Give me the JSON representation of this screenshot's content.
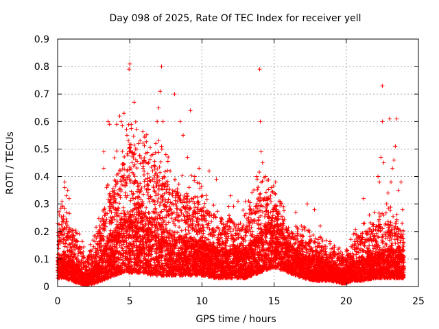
{
  "chart_data": {
    "type": "scatter",
    "title": "Day 098 of 2025, Rate Of TEC Index for receiver yell",
    "xlabel": "GPS time / hours",
    "ylabel": "ROTI / TECUs",
    "xlim": [
      0,
      25
    ],
    "ylim": [
      0,
      0.9
    ],
    "x_ticks": [
      0,
      5,
      10,
      15,
      20,
      25
    ],
    "x_tick_labels": [
      "0",
      "5",
      "10",
      "15",
      "20",
      "25"
    ],
    "y_ticks": [
      0,
      0.1,
      0.2,
      0.3,
      0.4,
      0.5,
      0.6,
      0.7,
      0.8,
      0.9
    ],
    "y_tick_labels": [
      "0",
      "0.1",
      "0.2",
      "0.3",
      "0.4",
      "0.5",
      "0.6",
      "0.7",
      "0.8",
      "0.9"
    ],
    "grid": true,
    "marker": "+",
    "marker_color": "#ff0000",
    "series": [
      {
        "name": "ROTI",
        "envelope": [
          {
            "x": 0.0,
            "base": 0.03,
            "mid": 0.08,
            "top": 0.22
          },
          {
            "x": 0.5,
            "base": 0.03,
            "mid": 0.09,
            "top": 0.25
          },
          {
            "x": 1.0,
            "base": 0.02,
            "mid": 0.07,
            "top": 0.2
          },
          {
            "x": 1.5,
            "base": 0.01,
            "mid": 0.05,
            "top": 0.16
          },
          {
            "x": 2.0,
            "base": 0.005,
            "mid": 0.03,
            "top": 0.1
          },
          {
            "x": 2.5,
            "base": 0.01,
            "mid": 0.05,
            "top": 0.15
          },
          {
            "x": 3.0,
            "base": 0.02,
            "mid": 0.08,
            "top": 0.24
          },
          {
            "x": 3.5,
            "base": 0.03,
            "mid": 0.12,
            "top": 0.33
          },
          {
            "x": 4.0,
            "base": 0.04,
            "mid": 0.15,
            "top": 0.4
          },
          {
            "x": 4.5,
            "base": 0.05,
            "mid": 0.18,
            "top": 0.48
          },
          {
            "x": 5.0,
            "base": 0.05,
            "mid": 0.2,
            "top": 0.52
          },
          {
            "x": 5.5,
            "base": 0.05,
            "mid": 0.21,
            "top": 0.5
          },
          {
            "x": 6.0,
            "base": 0.05,
            "mid": 0.19,
            "top": 0.46
          },
          {
            "x": 6.5,
            "base": 0.04,
            "mid": 0.17,
            "top": 0.44
          },
          {
            "x": 7.0,
            "base": 0.04,
            "mid": 0.17,
            "top": 0.45
          },
          {
            "x": 7.5,
            "base": 0.04,
            "mid": 0.15,
            "top": 0.4
          },
          {
            "x": 8.0,
            "base": 0.04,
            "mid": 0.13,
            "top": 0.35
          },
          {
            "x": 9.0,
            "base": 0.04,
            "mid": 0.13,
            "top": 0.34
          },
          {
            "x": 10.0,
            "base": 0.04,
            "mid": 0.12,
            "top": 0.3
          },
          {
            "x": 11.0,
            "base": 0.03,
            "mid": 0.1,
            "top": 0.26
          },
          {
            "x": 12.0,
            "base": 0.03,
            "mid": 0.1,
            "top": 0.24
          },
          {
            "x": 13.0,
            "base": 0.03,
            "mid": 0.1,
            "top": 0.23
          },
          {
            "x": 13.5,
            "base": 0.04,
            "mid": 0.12,
            "top": 0.28
          },
          {
            "x": 14.0,
            "base": 0.05,
            "mid": 0.14,
            "top": 0.34
          },
          {
            "x": 14.5,
            "base": 0.06,
            "mid": 0.16,
            "top": 0.33
          },
          {
            "x": 15.0,
            "base": 0.07,
            "mid": 0.17,
            "top": 0.3
          },
          {
            "x": 15.5,
            "base": 0.06,
            "mid": 0.15,
            "top": 0.26
          },
          {
            "x": 16.0,
            "base": 0.05,
            "mid": 0.11,
            "top": 0.2
          },
          {
            "x": 17.0,
            "base": 0.03,
            "mid": 0.08,
            "top": 0.18
          },
          {
            "x": 18.0,
            "base": 0.02,
            "mid": 0.07,
            "top": 0.16
          },
          {
            "x": 19.0,
            "base": 0.02,
            "mid": 0.06,
            "top": 0.14
          },
          {
            "x": 19.8,
            "base": 0.01,
            "mid": 0.04,
            "top": 0.1
          },
          {
            "x": 20.5,
            "base": 0.02,
            "mid": 0.06,
            "top": 0.16
          },
          {
            "x": 21.0,
            "base": 0.02,
            "mid": 0.07,
            "top": 0.19
          },
          {
            "x": 22.0,
            "base": 0.03,
            "mid": 0.09,
            "top": 0.22
          },
          {
            "x": 23.0,
            "base": 0.03,
            "mid": 0.1,
            "top": 0.24
          },
          {
            "x": 23.6,
            "base": 0.03,
            "mid": 0.09,
            "top": 0.22
          },
          {
            "x": 24.0,
            "base": 0.03,
            "mid": 0.08,
            "top": 0.2
          }
        ],
        "outliers": [
          [
            0.5,
            0.38
          ],
          [
            0.5,
            0.36
          ],
          [
            0.6,
            0.33
          ],
          [
            0.7,
            0.35
          ],
          [
            0.8,
            0.32
          ],
          [
            0.3,
            0.31
          ],
          [
            3.2,
            0.49
          ],
          [
            3.5,
            0.6
          ],
          [
            3.6,
            0.59
          ],
          [
            3.2,
            0.43
          ],
          [
            3.4,
            0.36
          ],
          [
            4.1,
            0.59
          ],
          [
            4.3,
            0.62
          ],
          [
            4.4,
            0.6
          ],
          [
            4.6,
            0.63
          ],
          [
            4.8,
            0.55
          ],
          [
            4.9,
            0.53
          ],
          [
            5.0,
            0.81
          ],
          [
            4.95,
            0.79
          ],
          [
            5.1,
            0.59
          ],
          [
            5.3,
            0.67
          ],
          [
            5.5,
            0.5
          ],
          [
            5.6,
            0.52
          ],
          [
            6.0,
            0.46
          ],
          [
            6.3,
            0.45
          ],
          [
            6.6,
            0.48
          ],
          [
            6.8,
            0.52
          ],
          [
            6.9,
            0.6
          ],
          [
            7.0,
            0.65
          ],
          [
            7.1,
            0.71
          ],
          [
            7.2,
            0.8
          ],
          [
            7.3,
            0.6
          ],
          [
            7.5,
            0.48
          ],
          [
            7.8,
            0.42
          ],
          [
            8.1,
            0.7
          ],
          [
            8.5,
            0.6
          ],
          [
            8.7,
            0.55
          ],
          [
            9.0,
            0.47
          ],
          [
            9.2,
            0.64
          ],
          [
            9.5,
            0.4
          ],
          [
            9.8,
            0.43
          ],
          [
            10.5,
            0.42
          ],
          [
            11.0,
            0.39
          ],
          [
            12.0,
            0.33
          ],
          [
            12.5,
            0.31
          ],
          [
            13.0,
            0.31
          ],
          [
            13.8,
            0.4
          ],
          [
            14.0,
            0.79
          ],
          [
            14.05,
            0.6
          ],
          [
            14.1,
            0.49
          ],
          [
            14.2,
            0.45
          ],
          [
            14.4,
            0.4
          ],
          [
            14.8,
            0.36
          ],
          [
            15.1,
            0.38
          ],
          [
            15.5,
            0.3
          ],
          [
            16.5,
            0.27
          ],
          [
            17.3,
            0.3
          ],
          [
            17.8,
            0.28
          ],
          [
            18.2,
            0.22
          ],
          [
            19.5,
            0.14
          ],
          [
            21.2,
            0.32
          ],
          [
            21.6,
            0.26
          ],
          [
            22.2,
            0.4
          ],
          [
            22.3,
            0.38
          ],
          [
            22.4,
            0.47
          ],
          [
            22.5,
            0.6
          ],
          [
            22.5,
            0.73
          ],
          [
            22.6,
            0.45
          ],
          [
            22.9,
            0.34
          ],
          [
            23.0,
            0.61
          ],
          [
            23.1,
            0.38
          ],
          [
            23.3,
            0.46
          ],
          [
            23.4,
            0.51
          ],
          [
            23.5,
            0.61
          ],
          [
            23.6,
            0.35
          ],
          [
            23.8,
            0.38
          ],
          [
            23.9,
            0.28
          ],
          [
            23.2,
            0.43
          ],
          [
            22.8,
            0.3
          ]
        ]
      }
    ]
  }
}
